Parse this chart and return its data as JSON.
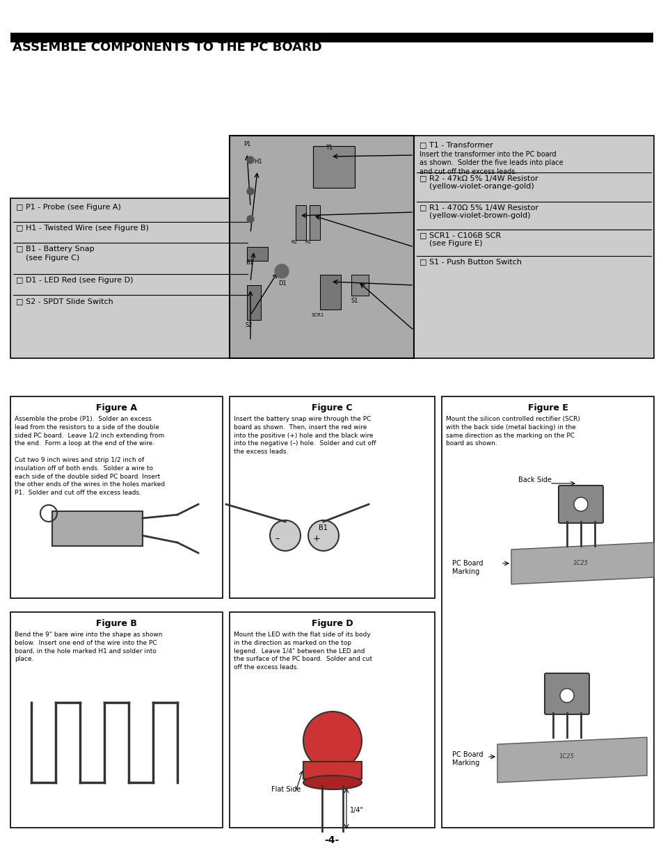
{
  "title": "ASSEMBLE COMPONENTS TO THE PC BOARD",
  "page_number": "-4-",
  "background_color": "#ffffff",
  "title_bar_color": "#000000",
  "title_font_size": 14,
  "title_bold": true,
  "left_box_items": [
    "□ P1 - Probe (see Figure A)",
    "□ H1 - Twisted Wire (see Figure B)",
    "□ B1 - Battery Snap\n    (see Figure C)",
    "□ D1 - LED Red (see Figure D)",
    "□ S2 - SPDT Slide Switch"
  ],
  "right_box_items": [
    "□ T1 - Transformer",
    "Insert the transformer into the PC board\nas shown.  Solder the five leads into place\nand cut off the excess leads.",
    "□ R2 - 47kΩ 5% 1/4W Resistor\n    (yellow-violet-orange-gold)",
    "□ R1 - 470Ω 5% 1/4W Resistor\n    (yellow-violet-brown-gold)",
    "□ SCR1 - C106B SCR\n    (see Figure E)",
    "□ S1 - Push Button Switch"
  ],
  "figure_a_title": "Figure A",
  "figure_a_text": "Assemble the probe (P1).  Solder an excess\nlead from the resistors to a side of the double\nsided PC board.  Leave 1/2 inch extending from\nthe end.  Form a loop at the end of the wire.\n\nCut two 9 inch wires and strip 1/2 inch of\ninsulation off of both ends.  Solder a wire to\neach side of the double sided PC board. Insert\nthe other ends of the wires in the holes marked\nP1.  Solder and cut off the excess leads.",
  "figure_b_title": "Figure B",
  "figure_b_text": "Bend the 9\" bare wire into the shape as shown\nbelow.  Insert one end of the wire into the PC\nboard, in the hole marked H1 and solder into\nplace.",
  "figure_c_title": "Figure C",
  "figure_c_text": "Insert the battery snap wire through the PC\nboard as shown.  Then, insert the red wire\ninto the positive (+) hole and the black wire\ninto the negative (–) hole.  Solder and cut off\nthe excess leads.",
  "figure_d_title": "Figure D",
  "figure_d_text": "Mount the LED with the flat side of its body\nin the direction as marked on the top\nlegend.  Leave 1/4\" between the LED and\nthe surface of the PC board.  Solder and cut\noff the excess leads.",
  "figure_e_title": "Figure E",
  "figure_e_text": "Mount the silicon controlled rectifier (SCR)\nwith the back side (metal backing) in the\nsame direction as the marking on the PC\nboard as shown.",
  "box_bg_color": "#d0d0d0",
  "box_border_color": "#000000",
  "figure_border_color": "#000000",
  "figure_bg_color": "#ffffff"
}
